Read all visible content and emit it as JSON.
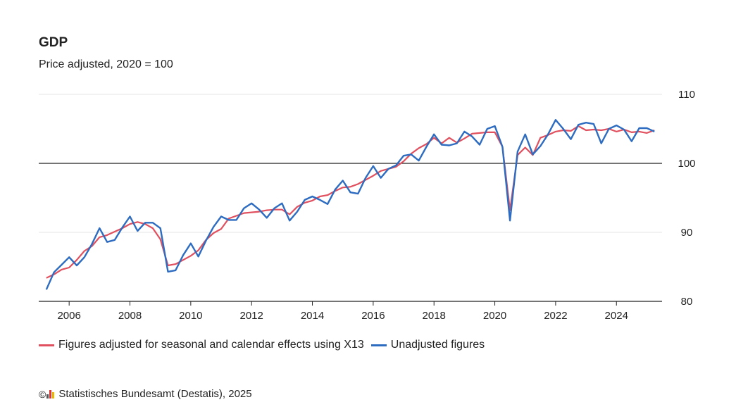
{
  "chart_data": {
    "type": "line",
    "title": "GDP",
    "subtitle": "Price adjusted, 2020 = 100",
    "ylim": [
      80,
      110
    ],
    "xlim": [
      2005.0,
      2025.5
    ],
    "y_ticks": [
      80,
      90,
      100,
      110
    ],
    "x_ticks": [
      2006,
      2008,
      2010,
      2012,
      2014,
      2016,
      2018,
      2020,
      2022,
      2024
    ],
    "reference_line": 100,
    "grid": "horizontal",
    "legend_position": "bottom",
    "series": [
      {
        "name": "Figures adjusted for seasonal and calendar effects using X13",
        "color": "#e0505e",
        "x": [
          2005.25,
          2005.5,
          2005.75,
          2006.0,
          2006.25,
          2006.5,
          2006.75,
          2007.0,
          2007.25,
          2007.5,
          2007.75,
          2008.0,
          2008.25,
          2008.5,
          2008.75,
          2009.0,
          2009.25,
          2009.5,
          2009.75,
          2010.0,
          2010.25,
          2010.5,
          2010.75,
          2011.0,
          2011.25,
          2011.5,
          2011.75,
          2012.0,
          2012.25,
          2012.5,
          2012.75,
          2013.0,
          2013.25,
          2013.5,
          2013.75,
          2014.0,
          2014.25,
          2014.5,
          2014.75,
          2015.0,
          2015.25,
          2015.5,
          2015.75,
          2016.0,
          2016.25,
          2016.5,
          2016.75,
          2017.0,
          2017.25,
          2017.5,
          2017.75,
          2018.0,
          2018.25,
          2018.5,
          2018.75,
          2019.0,
          2019.25,
          2019.5,
          2019.75,
          2020.0,
          2020.25,
          2020.5,
          2020.75,
          2021.0,
          2021.25,
          2021.5,
          2021.75,
          2022.0,
          2022.25,
          2022.5,
          2022.75,
          2023.0,
          2023.25,
          2023.5,
          2023.75,
          2024.0,
          2024.25,
          2024.5,
          2024.75,
          2025.0,
          2025.25
        ],
        "values": [
          83.4,
          83.9,
          84.6,
          84.9,
          86.0,
          87.3,
          88.0,
          89.3,
          89.6,
          90.1,
          90.6,
          91.2,
          91.5,
          91.2,
          90.6,
          89.0,
          85.2,
          85.4,
          86.0,
          86.6,
          87.4,
          88.9,
          89.9,
          90.5,
          92.0,
          92.4,
          92.8,
          92.9,
          93.0,
          93.2,
          93.3,
          93.3,
          92.6,
          93.7,
          94.3,
          94.6,
          95.2,
          95.4,
          96.0,
          96.5,
          96.6,
          97.0,
          97.6,
          98.2,
          98.9,
          99.2,
          99.5,
          100.3,
          101.4,
          102.2,
          102.8,
          103.7,
          102.9,
          103.7,
          103.0,
          103.6,
          104.3,
          104.4,
          104.5,
          104.5,
          102.4,
          93.2,
          101.2,
          102.3,
          101.2,
          103.7,
          104.1,
          104.6,
          104.8,
          104.7,
          105.4,
          104.8,
          104.9,
          104.8,
          105.0,
          104.6,
          104.9,
          104.5,
          104.6,
          104.4,
          104.8
        ]
      },
      {
        "name": "Unadjusted figures",
        "color": "#2d6cc0",
        "x": [
          2005.25,
          2005.5,
          2005.75,
          2006.0,
          2006.25,
          2006.5,
          2006.75,
          2007.0,
          2007.25,
          2007.5,
          2007.75,
          2008.0,
          2008.25,
          2008.5,
          2008.75,
          2009.0,
          2009.25,
          2009.5,
          2009.75,
          2010.0,
          2010.25,
          2010.5,
          2010.75,
          2011.0,
          2011.25,
          2011.5,
          2011.75,
          2012.0,
          2012.25,
          2012.5,
          2012.75,
          2013.0,
          2013.25,
          2013.5,
          2013.75,
          2014.0,
          2014.25,
          2014.5,
          2014.75,
          2015.0,
          2015.25,
          2015.5,
          2015.75,
          2016.0,
          2016.25,
          2016.5,
          2016.75,
          2017.0,
          2017.25,
          2017.5,
          2017.75,
          2018.0,
          2018.25,
          2018.5,
          2018.75,
          2019.0,
          2019.25,
          2019.5,
          2019.75,
          2020.0,
          2020.25,
          2020.5,
          2020.75,
          2021.0,
          2021.25,
          2021.5,
          2021.75,
          2022.0,
          2022.25,
          2022.5,
          2022.75,
          2023.0,
          2023.25,
          2023.5,
          2023.75,
          2024.0,
          2024.25,
          2024.5,
          2024.75,
          2025.0,
          2025.25
        ],
        "values": [
          81.7,
          84.2,
          85.3,
          86.4,
          85.2,
          86.4,
          88.3,
          90.6,
          88.6,
          88.9,
          90.7,
          92.3,
          90.2,
          91.4,
          91.4,
          90.6,
          84.3,
          84.5,
          86.7,
          88.4,
          86.5,
          88.8,
          90.8,
          92.3,
          91.8,
          91.8,
          93.5,
          94.2,
          93.3,
          92.1,
          93.5,
          94.2,
          91.7,
          93.0,
          94.7,
          95.2,
          94.7,
          94.1,
          96.2,
          97.5,
          95.8,
          95.6,
          97.9,
          99.6,
          97.9,
          99.2,
          99.7,
          101.1,
          101.3,
          100.4,
          102.4,
          104.2,
          102.7,
          102.6,
          102.9,
          104.6,
          103.9,
          102.7,
          105.0,
          105.4,
          102.4,
          91.7,
          101.7,
          104.2,
          101.3,
          102.5,
          104.2,
          106.3,
          105.0,
          103.5,
          105.6,
          105.9,
          105.7,
          102.9,
          105.0,
          105.5,
          104.9,
          103.2,
          105.1,
          105.1,
          104.6
        ]
      }
    ]
  },
  "legend": {
    "item1": "Figures adjusted for seasonal and calendar effects using X13",
    "item2": "Unadjusted figures"
  },
  "footer": {
    "copyright_symbol": "©",
    "source": "Statistisches Bundesamt (Destatis), 2025"
  },
  "icons": {
    "copyright": "copyright-icon",
    "logo": "destatis-logo-icon"
  }
}
